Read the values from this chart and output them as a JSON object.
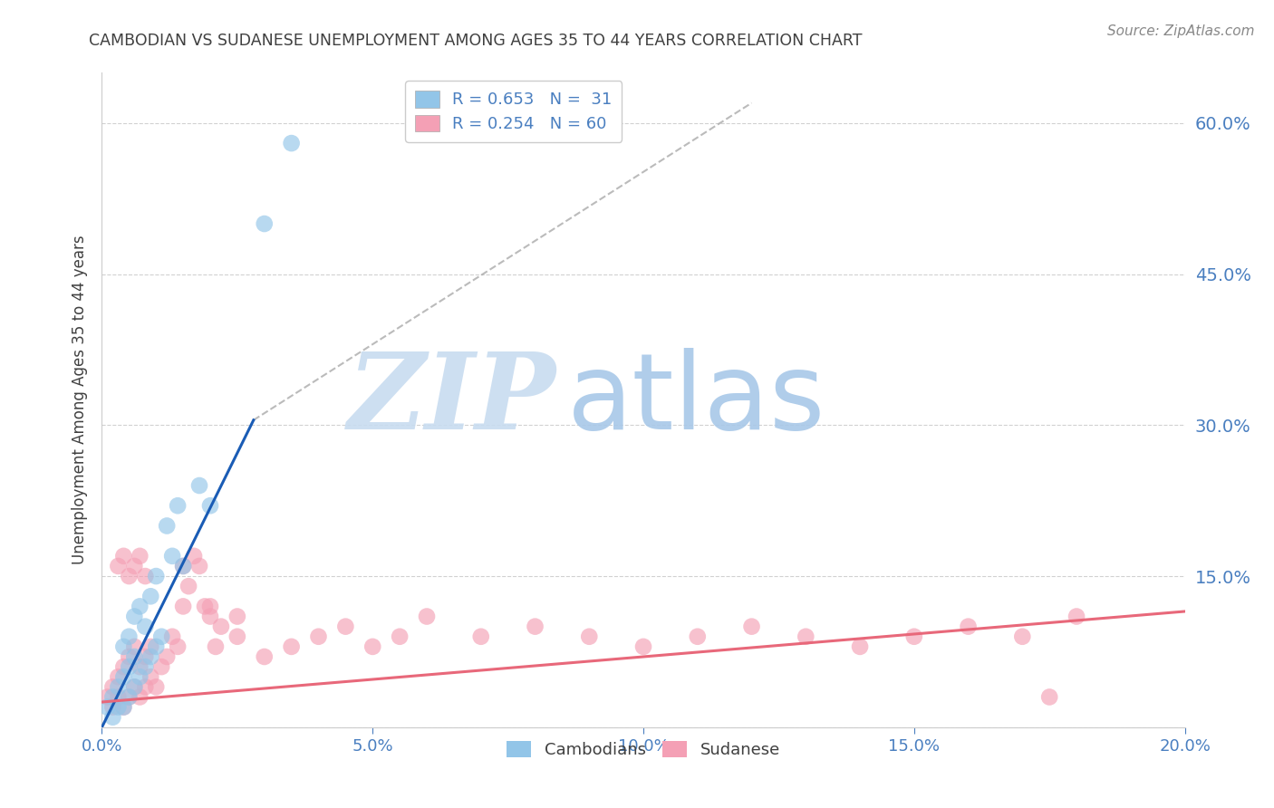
{
  "title": "CAMBODIAN VS SUDANESE UNEMPLOYMENT AMONG AGES 35 TO 44 YEARS CORRELATION CHART",
  "source": "Source: ZipAtlas.com",
  "ylabel": "Unemployment Among Ages 35 to 44 years",
  "xmin": 0.0,
  "xmax": 0.2,
  "ymin": 0.0,
  "ymax": 0.65,
  "yticks": [
    0.0,
    0.15,
    0.3,
    0.45,
    0.6
  ],
  "xticks": [
    0.0,
    0.05,
    0.1,
    0.15,
    0.2
  ],
  "cambodian_color": "#92C5E8",
  "sudanese_color": "#F4A0B5",
  "cambodian_line_color": "#1A5CB5",
  "sudanese_line_color": "#E8687A",
  "legend_cambodian_label": "R = 0.653   N =  31",
  "legend_sudanese_label": "R = 0.254   N = 60",
  "title_color": "#404040",
  "axis_label_color": "#404040",
  "tick_color": "#4A7FC0",
  "grid_color": "#CCCCCC",
  "watermark_zip_color": "#C8DCF0",
  "watermark_atlas_color": "#A8C8E8",
  "cambodian_x": [
    0.001,
    0.002,
    0.002,
    0.003,
    0.003,
    0.004,
    0.004,
    0.004,
    0.005,
    0.005,
    0.005,
    0.006,
    0.006,
    0.006,
    0.007,
    0.007,
    0.008,
    0.008,
    0.009,
    0.009,
    0.01,
    0.01,
    0.011,
    0.012,
    0.013,
    0.014,
    0.015,
    0.018,
    0.02,
    0.03,
    0.035
  ],
  "cambodian_y": [
    0.02,
    0.01,
    0.03,
    0.02,
    0.04,
    0.02,
    0.05,
    0.08,
    0.03,
    0.06,
    0.09,
    0.04,
    0.07,
    0.11,
    0.05,
    0.12,
    0.06,
    0.1,
    0.07,
    0.13,
    0.08,
    0.15,
    0.09,
    0.2,
    0.17,
    0.22,
    0.16,
    0.24,
    0.22,
    0.5,
    0.58
  ],
  "sudanese_x": [
    0.001,
    0.002,
    0.002,
    0.003,
    0.003,
    0.004,
    0.004,
    0.005,
    0.005,
    0.006,
    0.006,
    0.007,
    0.007,
    0.008,
    0.008,
    0.009,
    0.009,
    0.01,
    0.011,
    0.012,
    0.013,
    0.014,
    0.015,
    0.016,
    0.017,
    0.018,
    0.019,
    0.02,
    0.021,
    0.022,
    0.025,
    0.03,
    0.035,
    0.04,
    0.045,
    0.05,
    0.055,
    0.06,
    0.07,
    0.08,
    0.09,
    0.1,
    0.11,
    0.12,
    0.13,
    0.14,
    0.15,
    0.16,
    0.17,
    0.18,
    0.003,
    0.004,
    0.005,
    0.006,
    0.007,
    0.008,
    0.015,
    0.02,
    0.025,
    0.175
  ],
  "sudanese_y": [
    0.03,
    0.02,
    0.04,
    0.03,
    0.05,
    0.02,
    0.06,
    0.03,
    0.07,
    0.04,
    0.08,
    0.03,
    0.06,
    0.04,
    0.07,
    0.05,
    0.08,
    0.04,
    0.06,
    0.07,
    0.09,
    0.08,
    0.16,
    0.14,
    0.17,
    0.16,
    0.12,
    0.11,
    0.08,
    0.1,
    0.09,
    0.07,
    0.08,
    0.09,
    0.1,
    0.08,
    0.09,
    0.11,
    0.09,
    0.1,
    0.09,
    0.08,
    0.09,
    0.1,
    0.09,
    0.08,
    0.09,
    0.1,
    0.09,
    0.11,
    0.16,
    0.17,
    0.15,
    0.16,
    0.17,
    0.15,
    0.12,
    0.12,
    0.11,
    0.03
  ],
  "camb_line_x0": 0.0,
  "camb_line_y0": 0.0,
  "camb_line_x1": 0.028,
  "camb_line_y1": 0.305,
  "sud_line_x0": 0.0,
  "sud_line_y0": 0.025,
  "sud_line_x1": 0.2,
  "sud_line_y1": 0.115,
  "dash_line_x0": 0.028,
  "dash_line_y0": 0.305,
  "dash_line_x1": 0.12,
  "dash_line_y1": 0.62
}
